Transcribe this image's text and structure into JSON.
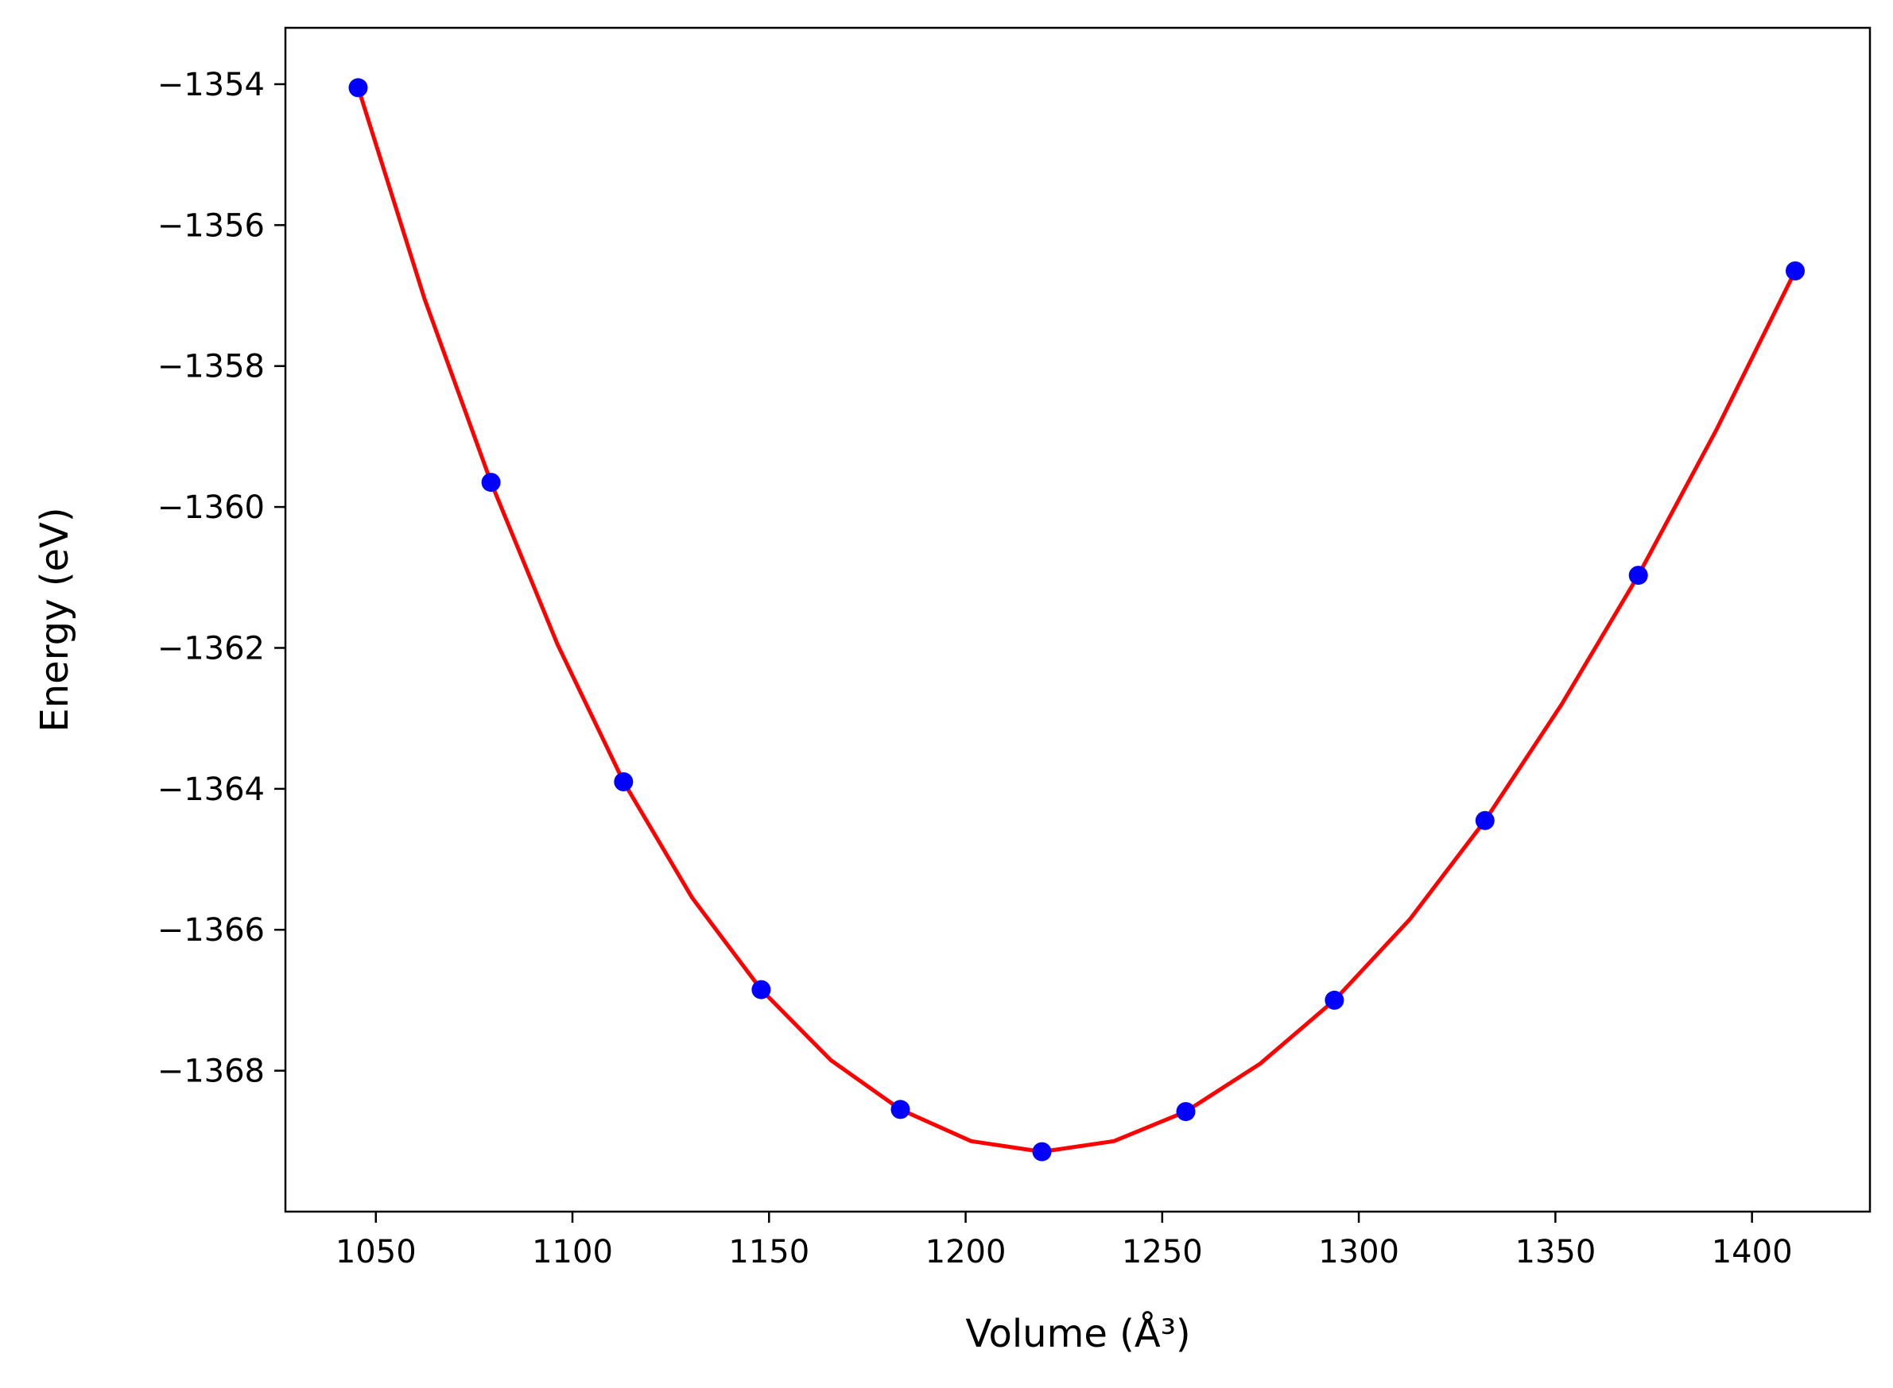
{
  "chart_data": {
    "type": "scatter",
    "title": "",
    "xlabel": "Volume (Å³)",
    "ylabel": "Energy (eV)",
    "xlim": [
      1027,
      1430
    ],
    "ylim": [
      -1370.0,
      -1353.2
    ],
    "x_ticks": [
      1050,
      1100,
      1150,
      1200,
      1250,
      1300,
      1350,
      1400
    ],
    "y_ticks": [
      -1354,
      -1356,
      -1358,
      -1360,
      -1362,
      -1364,
      -1366,
      -1368
    ],
    "x_tick_labels": [
      "1050",
      "1100",
      "1150",
      "1200",
      "1250",
      "1300",
      "1350",
      "1400"
    ],
    "y_tick_labels": [
      "−1354",
      "−1356",
      "−1358",
      "−1360",
      "−1362",
      "−1364",
      "−1366",
      "−1368"
    ],
    "grid": false,
    "legend": "none",
    "series": [
      {
        "kind": "points",
        "color": "#0000ff",
        "x": [
          1045.5,
          1079.3,
          1113.0,
          1148.0,
          1183.4,
          1219.4,
          1256.0,
          1293.8,
          1332.1,
          1371.1,
          1411.0
        ],
        "y": [
          -1354.05,
          -1359.65,
          -1363.9,
          -1366.85,
          -1368.55,
          -1369.15,
          -1368.58,
          -1367.0,
          -1364.45,
          -1360.97,
          -1356.65
        ]
      },
      {
        "kind": "fit-curve",
        "color": "#ff0000",
        "x": [
          1045.5,
          1062.4,
          1079.3,
          1096.2,
          1113.0,
          1130.5,
          1148.0,
          1165.7,
          1183.4,
          1201.4,
          1219.4,
          1237.7,
          1256.0,
          1274.9,
          1293.8,
          1313.0,
          1332.1,
          1351.6,
          1371.1,
          1391.0,
          1411.0
        ],
        "y": [
          -1354.05,
          -1357.05,
          -1359.65,
          -1361.95,
          -1363.9,
          -1365.55,
          -1366.85,
          -1367.85,
          -1368.55,
          -1369.0,
          -1369.15,
          -1369.0,
          -1368.58,
          -1367.9,
          -1367.0,
          -1365.85,
          -1364.45,
          -1362.8,
          -1360.97,
          -1358.9,
          -1356.65
        ]
      }
    ]
  }
}
